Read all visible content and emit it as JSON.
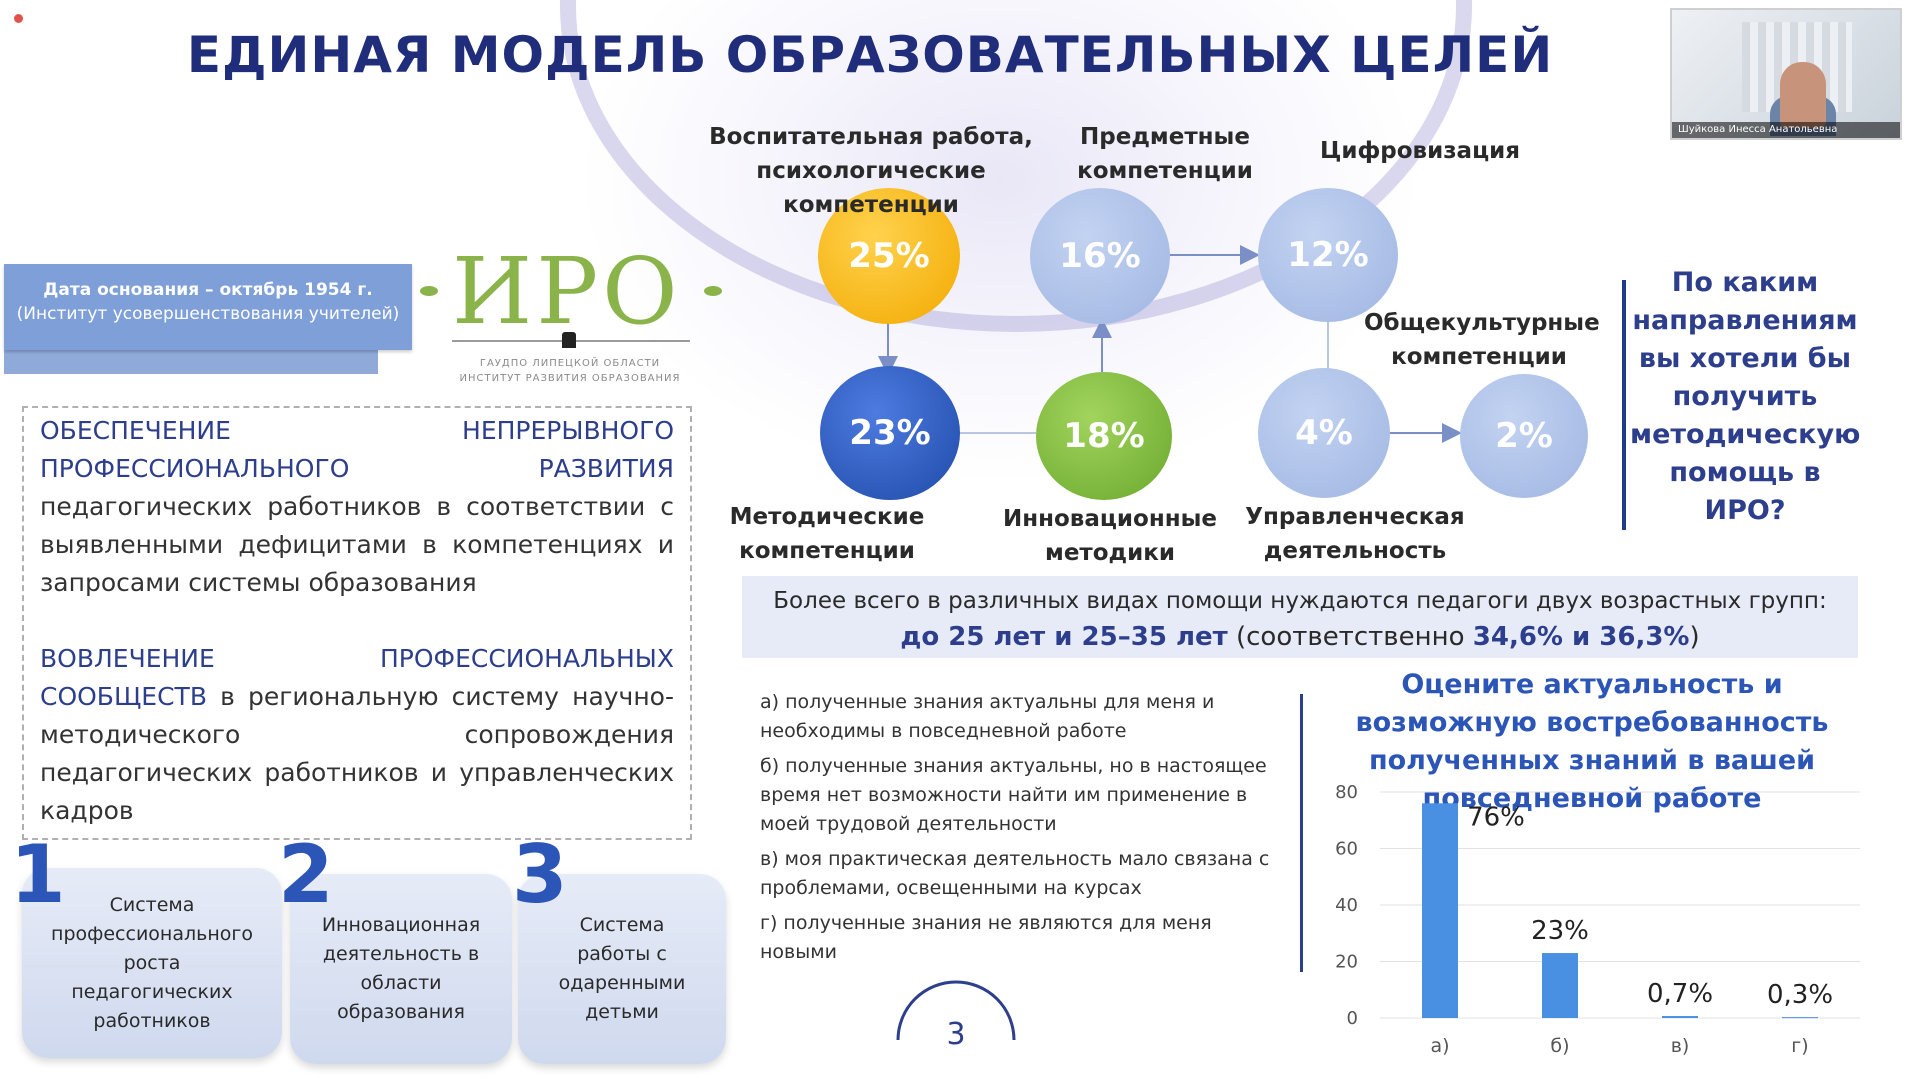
{
  "slide": {
    "title": "ЕДИНАЯ МОДЕЛЬ ОБРАЗОВАТЕЛЬНЫХ ЦЕЛЕЙ",
    "page_number": "3"
  },
  "video": {
    "participant_name": "Шуйкова Инесса Анатольевна"
  },
  "iro": {
    "date_line1": "Дата основания – октябрь 1954 г.",
    "date_line2": "(Институт усовершенствования учителей)",
    "logo_text": "ИРО",
    "logo_sub1": "ГАУДПО ЛИПЕЦКОЙ ОБЛАСТИ",
    "logo_sub2": "ИНСТИТУТ РАЗВИТИЯ ОБРАЗОВАНИЯ"
  },
  "text_block": {
    "p1_lead": "ОБЕСПЕЧЕНИЕ НЕПРЕРЫВНОГО ПРОФЕССИОНАЛЬНОГО РАЗВИТИЯ",
    "p1_rest": "педагогических работников  в соответствии с выявленными дефицитами в компетенциях и запросами системы образования",
    "p2_lead": "ВОВЛЕЧЕНИЕ ПРОФЕССИОНАЛЬНЫХ СООБЩЕСТВ",
    "p2_rest": "в региональную систему научно-методического сопровождения педагогических работников и управленческих кадров"
  },
  "cards": [
    {
      "number": "1",
      "text": "Система профессионального роста педагогических работников"
    },
    {
      "number": "2",
      "text": "Инновационная деятельность в области образования"
    },
    {
      "number": "3",
      "text": "Система работы с одаренными детьми"
    }
  ],
  "bubbles": [
    {
      "value": "25%",
      "label": "Воспитательная работа, психологические компетенции",
      "color": "#f4b400"
    },
    {
      "value": "16%",
      "label": "Предметные компетенции",
      "color": "#a7bde6"
    },
    {
      "value": "12%",
      "label": "Цифровизация",
      "color": "#a7bde6"
    },
    {
      "value": "23%",
      "label": "Методические компетенции",
      "color": "#2d5cc4"
    },
    {
      "value": "18%",
      "label": "Инновационные методики",
      "color": "#7fbf3f"
    },
    {
      "value": "4%",
      "label": "Управленческая деятельность",
      "color": "#a7bde6"
    },
    {
      "value": "2%",
      "label": "Общекультурные компетенции",
      "color": "#a7bde6"
    }
  ],
  "question": "По каким направлениям вы хотели бы получить методическую помощь в ИРО?",
  "banner": {
    "line1": "Более  всего в  различных  видах помощи  нуждаются педагоги двух  возрастных групп:",
    "line2_a": "до 25 лет и 25–35 лет",
    "line2_b": " (соответственно ",
    "line2_c": "34,6% и 36,3%",
    "line2_d": ")"
  },
  "options": [
    "а) полученные знания актуальны для меня и необходимы в повседневной работе",
    "б) полученные знания актуальны, но в настоящее время нет возможности найти им применение в моей трудовой деятельности",
    "в) моя практическая деятельность мало связана с проблемами, освещенными на курсах",
    "г) полученные знания не являются для меня новыми"
  ],
  "chart_title": "Оцените актуальность и возможную востребованность полученных знаний в вашей повседневной работе",
  "colors": {
    "accent": "#2c3e8c",
    "bar": "#4a90e2",
    "title": "#1f2d7a"
  },
  "chart_data": {
    "type": "bar",
    "title": "Оцените актуальность и возможную востребованность полученных знаний в вашей повседневной работе",
    "categories": [
      "а)",
      "б)",
      "в)",
      "г)"
    ],
    "values": [
      76,
      23,
      0.7,
      0.3
    ],
    "data_labels": [
      "76%",
      "23%",
      "0,7%",
      "0,3%"
    ],
    "yticks": [
      "0",
      "20",
      "40",
      "60",
      "80"
    ],
    "ylim": [
      0,
      80
    ],
    "grid": true,
    "legend": "none"
  }
}
